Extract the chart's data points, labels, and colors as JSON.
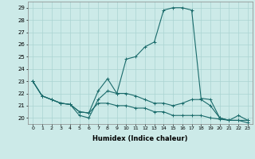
{
  "xlabel": "Humidex (Indice chaleur)",
  "bg_color": "#cceae8",
  "grid_color": "#aad4d2",
  "line_color": "#1a6b6b",
  "xlim": [
    -0.5,
    23.5
  ],
  "ylim": [
    19.5,
    29.5
  ],
  "xticks": [
    0,
    1,
    2,
    3,
    4,
    5,
    6,
    7,
    8,
    9,
    10,
    11,
    12,
    13,
    14,
    15,
    16,
    17,
    18,
    19,
    20,
    21,
    22,
    23
  ],
  "yticks": [
    20,
    21,
    22,
    23,
    24,
    25,
    26,
    27,
    28,
    29
  ],
  "series": [
    {
      "x": [
        0,
        1,
        2,
        3,
        4,
        5,
        6,
        7,
        8,
        9,
        10,
        11,
        12,
        13,
        14,
        15,
        16,
        17,
        18,
        19,
        20,
        21,
        22,
        23
      ],
      "y": [
        23.0,
        21.8,
        21.5,
        21.2,
        21.1,
        20.2,
        20.0,
        21.5,
        22.2,
        22.0,
        24.8,
        25.0,
        25.8,
        26.2,
        28.8,
        29.0,
        29.0,
        28.8,
        21.6,
        21.5,
        20.0,
        19.8,
        20.2,
        19.8
      ]
    },
    {
      "x": [
        0,
        1,
        2,
        3,
        4,
        5,
        6,
        7,
        8,
        9,
        10,
        11,
        12,
        13,
        14,
        15,
        16,
        17,
        18,
        19,
        20,
        21,
        22,
        23
      ],
      "y": [
        23.0,
        21.8,
        21.5,
        21.2,
        21.1,
        20.5,
        20.4,
        22.2,
        23.2,
        22.0,
        22.0,
        21.8,
        21.5,
        21.2,
        21.2,
        21.0,
        21.2,
        21.5,
        21.5,
        21.0,
        20.0,
        19.8,
        19.8,
        19.8
      ]
    },
    {
      "x": [
        0,
        1,
        2,
        3,
        4,
        5,
        6,
        7,
        8,
        9,
        10,
        11,
        12,
        13,
        14,
        15,
        16,
        17,
        18,
        19,
        20,
        21,
        22,
        23
      ],
      "y": [
        23.0,
        21.8,
        21.5,
        21.2,
        21.1,
        20.5,
        20.4,
        21.2,
        21.2,
        21.0,
        21.0,
        20.8,
        20.8,
        20.5,
        20.5,
        20.2,
        20.2,
        20.2,
        20.2,
        20.0,
        19.9,
        19.8,
        19.8,
        19.6
      ]
    }
  ]
}
